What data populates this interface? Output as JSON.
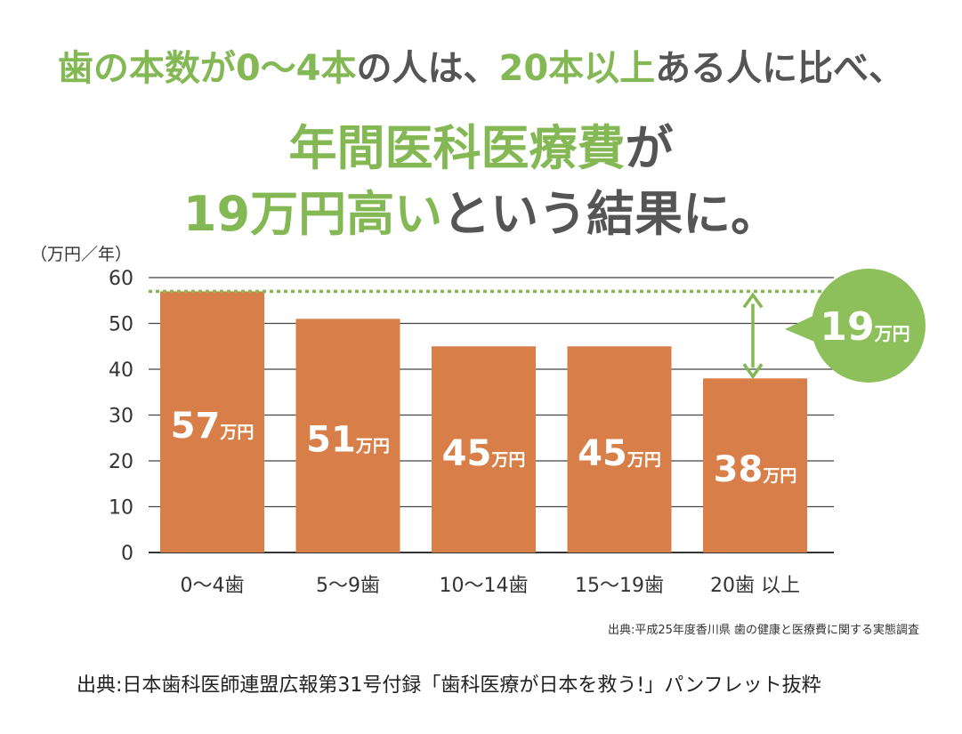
{
  "headline": {
    "line1": [
      {
        "text": "歯の本数が0〜4本",
        "color": "green"
      },
      {
        "text": "の人は、",
        "color": "gray"
      },
      {
        "text": "20本以上",
        "color": "green"
      },
      {
        "text": "ある人に比べ、",
        "color": "gray"
      }
    ],
    "line2": [
      {
        "text": "年間医科医療費",
        "color": "green"
      },
      {
        "text": "が",
        "color": "gray"
      }
    ],
    "line3": [
      {
        "text": "19万円高い",
        "color": "green"
      },
      {
        "text": "という結果に。",
        "color": "gray"
      }
    ]
  },
  "colors": {
    "green": "#84b855",
    "gray": "#555555",
    "bar": "#d87f49",
    "callout": "#8dc05b"
  },
  "chart_data": {
    "type": "bar",
    "unit_label": "（万円／年）",
    "categories": [
      "0〜4歯",
      "5〜9歯",
      "10〜14歯",
      "15〜19歯",
      "20歯 以上"
    ],
    "values": [
      57,
      51,
      45,
      45,
      38
    ],
    "bar_labels": [
      {
        "num": "57",
        "unit": "万円"
      },
      {
        "num": "51",
        "unit": "万円"
      },
      {
        "num": "45",
        "unit": "万円"
      },
      {
        "num": "45",
        "unit": "万円"
      },
      {
        "num": "38",
        "unit": "万円"
      }
    ],
    "yticks": [
      "0",
      "10",
      "20",
      "30",
      "40",
      "50",
      "60"
    ],
    "ylim": [
      0,
      60
    ],
    "grid": true,
    "reference_line": 57,
    "difference": {
      "num": "19",
      "unit": "万円"
    }
  },
  "source_small": "出典:平成25年度香川県 歯の健康と医療費に関する実態調査",
  "source_main": "出典:日本歯科医師連盟広報第31号付録「歯科医療が日本を救う!」パンフレット抜粋"
}
